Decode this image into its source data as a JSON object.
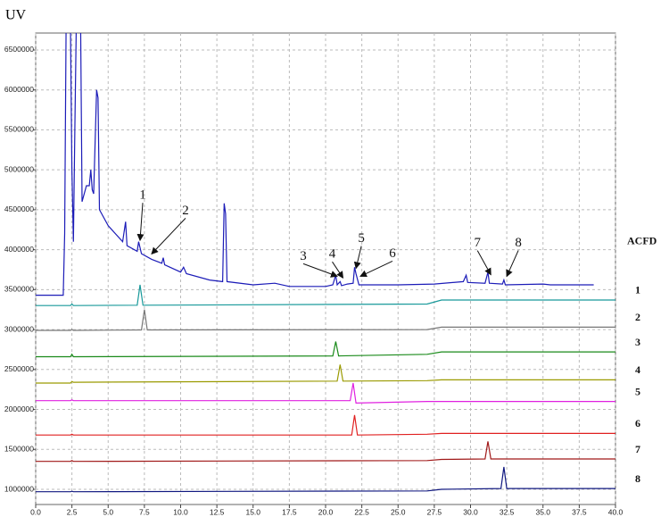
{
  "chart_data": {
    "type": "line",
    "ylabel": "UV",
    "xlim": [
      0,
      40
    ],
    "ylim": [
      810000,
      6712000
    ],
    "xticks": [
      {
        "value": 0,
        "label": "0.0"
      },
      {
        "value": 2.5,
        "label": "2.5"
      },
      {
        "value": 5,
        "label": "5.0"
      },
      {
        "value": 7.5,
        "label": "7.5"
      },
      {
        "value": 10,
        "label": "10.0"
      },
      {
        "value": 12.5,
        "label": "12.5"
      },
      {
        "value": 15,
        "label": "15.0"
      },
      {
        "value": 17.5,
        "label": "17.5"
      },
      {
        "value": 20,
        "label": "20.0"
      },
      {
        "value": 22.5,
        "label": "22.5"
      },
      {
        "value": 25,
        "label": "25.0"
      },
      {
        "value": 27.5,
        "label": "27.5"
      },
      {
        "value": 30,
        "label": "30.0"
      },
      {
        "value": 32.5,
        "label": "32.5"
      },
      {
        "value": 35,
        "label": "35.0"
      },
      {
        "value": 37.5,
        "label": "37.5"
      },
      {
        "value": 40,
        "label": "40.0"
      }
    ],
    "yticks": [
      1000000,
      1500000,
      2000000,
      2500000,
      3000000,
      3500000,
      4000000,
      4500000,
      5000000,
      5500000,
      6000000,
      6500000
    ],
    "grid": true,
    "series": [
      {
        "name": "ACFD",
        "color": "#1c1cb8",
        "x": [
          0,
          1.9,
          2.0,
          2.1,
          2.4,
          2.5,
          2.6,
          2.7,
          2.8,
          3.1,
          3.2,
          3.5,
          3.7,
          3.8,
          3.9,
          4.0,
          4.2,
          4.3,
          4.4,
          5.0,
          6.0,
          6.2,
          6.3,
          7.0,
          7.1,
          7.3,
          8.0,
          8.7,
          8.8,
          8.9,
          10.0,
          10.2,
          10.4,
          12.0,
          12.9,
          13.0,
          13.1,
          13.2,
          15.0,
          16.5,
          17.5,
          20.0,
          20.5,
          20.7,
          20.8,
          21.0,
          21.1,
          21.5,
          21.9,
          22.0,
          22.1,
          22.3,
          25,
          27.5,
          29.5,
          29.7,
          29.8,
          31.0,
          31.2,
          31.3,
          32.2,
          32.3,
          32.4,
          35.0,
          35.5,
          38.5
        ],
        "values": [
          3430000,
          3430000,
          4200000,
          6800000,
          6800000,
          5000000,
          4100000,
          5500000,
          6800000,
          6800000,
          4600000,
          4800000,
          4800000,
          5000000,
          4750000,
          4700000,
          6000000,
          5900000,
          4500000,
          4300000,
          4100000,
          4350000,
          4050000,
          3980000,
          4100000,
          3950000,
          3880000,
          3830000,
          3900000,
          3810000,
          3720000,
          3780000,
          3700000,
          3620000,
          3600000,
          4580000,
          4450000,
          3600000,
          3560000,
          3580000,
          3540000,
          3540000,
          3560000,
          3680000,
          3560000,
          3600000,
          3550000,
          3570000,
          3580000,
          3780000,
          3700000,
          3560000,
          3560000,
          3570000,
          3600000,
          3680000,
          3590000,
          3580000,
          3720000,
          3580000,
          3570000,
          3620000,
          3560000,
          3570000,
          3560000,
          3560000
        ]
      },
      {
        "name": "1",
        "color": "#18999a",
        "x": [
          0,
          2.4,
          2.5,
          2.6,
          7.0,
          7.2,
          7.4,
          27,
          28,
          40
        ],
        "values": [
          3300000,
          3300000,
          3320000,
          3300000,
          3305000,
          3560000,
          3305000,
          3320000,
          3370000,
          3370000
        ]
      },
      {
        "name": "2",
        "color": "#777777",
        "x": [
          0,
          2.4,
          2.5,
          2.6,
          7.3,
          7.5,
          7.7,
          27,
          28,
          40
        ],
        "values": [
          2990000,
          2990000,
          3000000,
          2990000,
          2995000,
          3250000,
          2995000,
          3000000,
          3030000,
          3030000
        ]
      },
      {
        "name": "3",
        "color": "#1a8a1a",
        "x": [
          0,
          2.4,
          2.5,
          2.6,
          20.5,
          20.7,
          20.9,
          27,
          28,
          40
        ],
        "values": [
          2660000,
          2660000,
          2690000,
          2660000,
          2670000,
          2850000,
          2670000,
          2690000,
          2720000,
          2720000
        ]
      },
      {
        "name": "4",
        "color": "#9a9a00",
        "x": [
          0,
          2.4,
          2.5,
          2.6,
          20.8,
          21.0,
          21.2,
          27,
          28,
          40
        ],
        "values": [
          2330000,
          2330000,
          2350000,
          2340000,
          2355000,
          2560000,
          2355000,
          2360000,
          2370000,
          2370000
        ]
      },
      {
        "name": "5",
        "color": "#e020e0",
        "x": [
          0,
          2.4,
          2.5,
          2.6,
          21.7,
          21.9,
          22.1,
          27,
          28,
          40
        ],
        "values": [
          2110000,
          2110000,
          2120000,
          2110000,
          2110000,
          2330000,
          2080000,
          2100000,
          2100000,
          2100000
        ]
      },
      {
        "name": "6",
        "color": "#e02020",
        "x": [
          0,
          2.4,
          2.5,
          2.6,
          21.8,
          22.0,
          22.2,
          27,
          28,
          40
        ],
        "values": [
          1680000,
          1680000,
          1690000,
          1680000,
          1680000,
          1930000,
          1680000,
          1690000,
          1700000,
          1700000
        ]
      },
      {
        "name": "7",
        "color": "#a01818",
        "x": [
          0,
          2.4,
          2.5,
          2.6,
          27,
          28,
          31.0,
          31.2,
          31.4,
          40
        ],
        "values": [
          1350000,
          1350000,
          1360000,
          1350000,
          1360000,
          1375000,
          1380000,
          1600000,
          1380000,
          1380000
        ]
      },
      {
        "name": "8",
        "color": "#101880",
        "x": [
          0,
          2.4,
          2.5,
          2.6,
          27,
          28,
          32.1,
          32.3,
          32.5,
          40
        ],
        "values": [
          970000,
          970000,
          975000,
          970000,
          980000,
          1000000,
          1010000,
          1280000,
          1010000,
          1010000
        ]
      }
    ],
    "annotations": [
      {
        "text": "1",
        "x": 7.2,
        "y": 4050000
      },
      {
        "text": "2",
        "x": 8.0,
        "y": 3880000
      },
      {
        "text": "3",
        "x": 20.8,
        "y": 3600000
      },
      {
        "text": "4",
        "x": 21.2,
        "y": 3580000
      },
      {
        "text": "5",
        "x": 22.1,
        "y": 3700000
      },
      {
        "text": "6",
        "x": 22.4,
        "y": 3600000
      },
      {
        "text": "7",
        "x": 31.4,
        "y": 3620000
      },
      {
        "text": "8",
        "x": 32.5,
        "y": 3600000
      }
    ]
  }
}
